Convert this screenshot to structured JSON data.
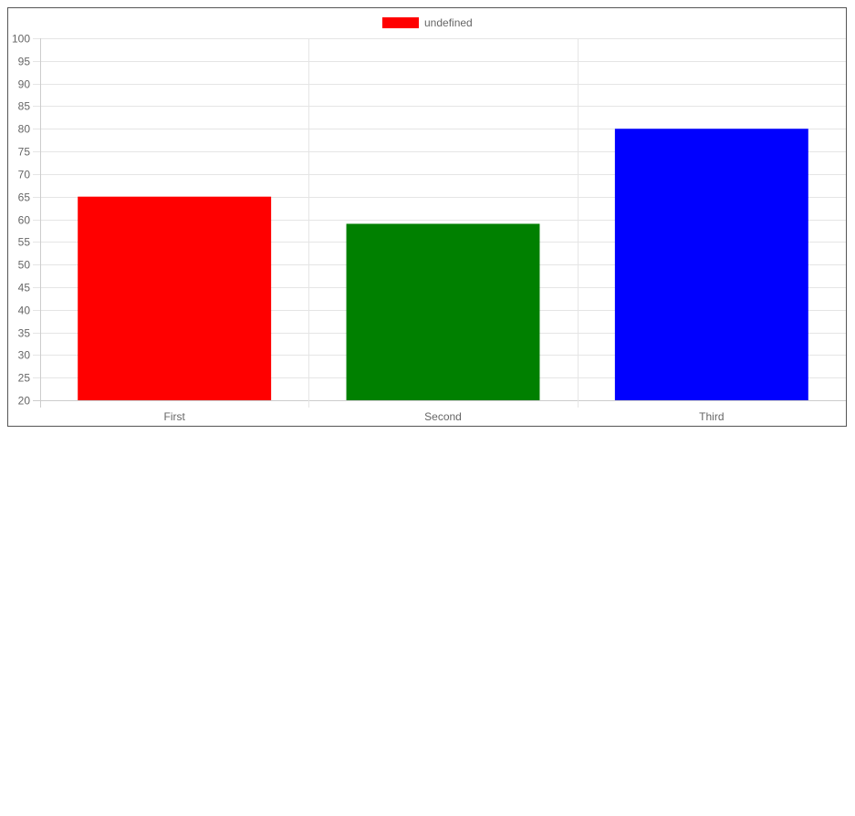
{
  "chart_data": {
    "type": "bar",
    "categories": [
      "First",
      "Second",
      "Third"
    ],
    "series": [
      {
        "name": "undefined",
        "values": [
          65,
          59,
          80
        ],
        "colors": [
          "#ff0000",
          "#008000",
          "#0000ff"
        ]
      }
    ],
    "ylim": [
      20,
      100
    ],
    "ytick_step": 5,
    "grid": true,
    "legend_position": "top",
    "legend_color": "#ff0000"
  }
}
